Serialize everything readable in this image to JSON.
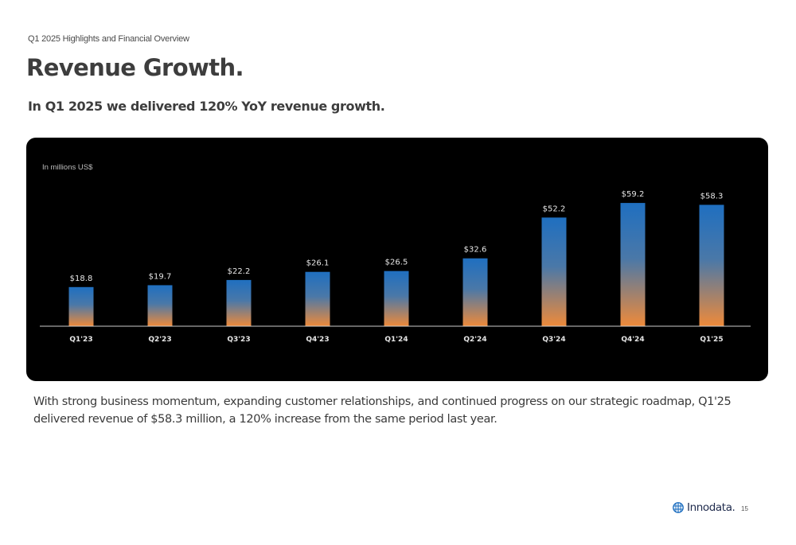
{
  "header": {
    "eyebrow": "Q1 2025 Highlights and Financial Overview",
    "title": "Revenue Growth.",
    "subtitle": "In Q1 2025 we delivered 120% YoY revenue growth."
  },
  "chart_data": {
    "type": "bar",
    "unit_note": "In millions US$",
    "categories": [
      "Q1'23",
      "Q2'23",
      "Q3'23",
      "Q4'23",
      "Q1'24",
      "Q2'24",
      "Q3'24",
      "Q4'24",
      "Q1'25"
    ],
    "values": [
      18.8,
      19.7,
      22.2,
      26.1,
      26.5,
      32.6,
      52.2,
      59.2,
      58.3
    ],
    "data_labels": [
      "$18.8",
      "$19.7",
      "$22.2",
      "$26.1",
      "$26.5",
      "$32.6",
      "$52.2",
      "$59.2",
      "$58.3"
    ],
    "ylim": [
      0,
      60
    ],
    "grid": false,
    "colors": {
      "bar_top": "#1f6fc0",
      "bar_bottom": "#ee8a3a",
      "background": "#000000",
      "baseline": "#cccccc"
    }
  },
  "body": {
    "text": "With strong business momentum, expanding customer relationships, and continued progress on our strategic roadmap, Q1'25 delivered revenue of $58.3 million, a 120% increase from the same period last year."
  },
  "footer": {
    "logo_text": "Innodata.",
    "page_number": "15",
    "logo_icon": "globe-icon",
    "logo_color": "#1f6fc0"
  }
}
